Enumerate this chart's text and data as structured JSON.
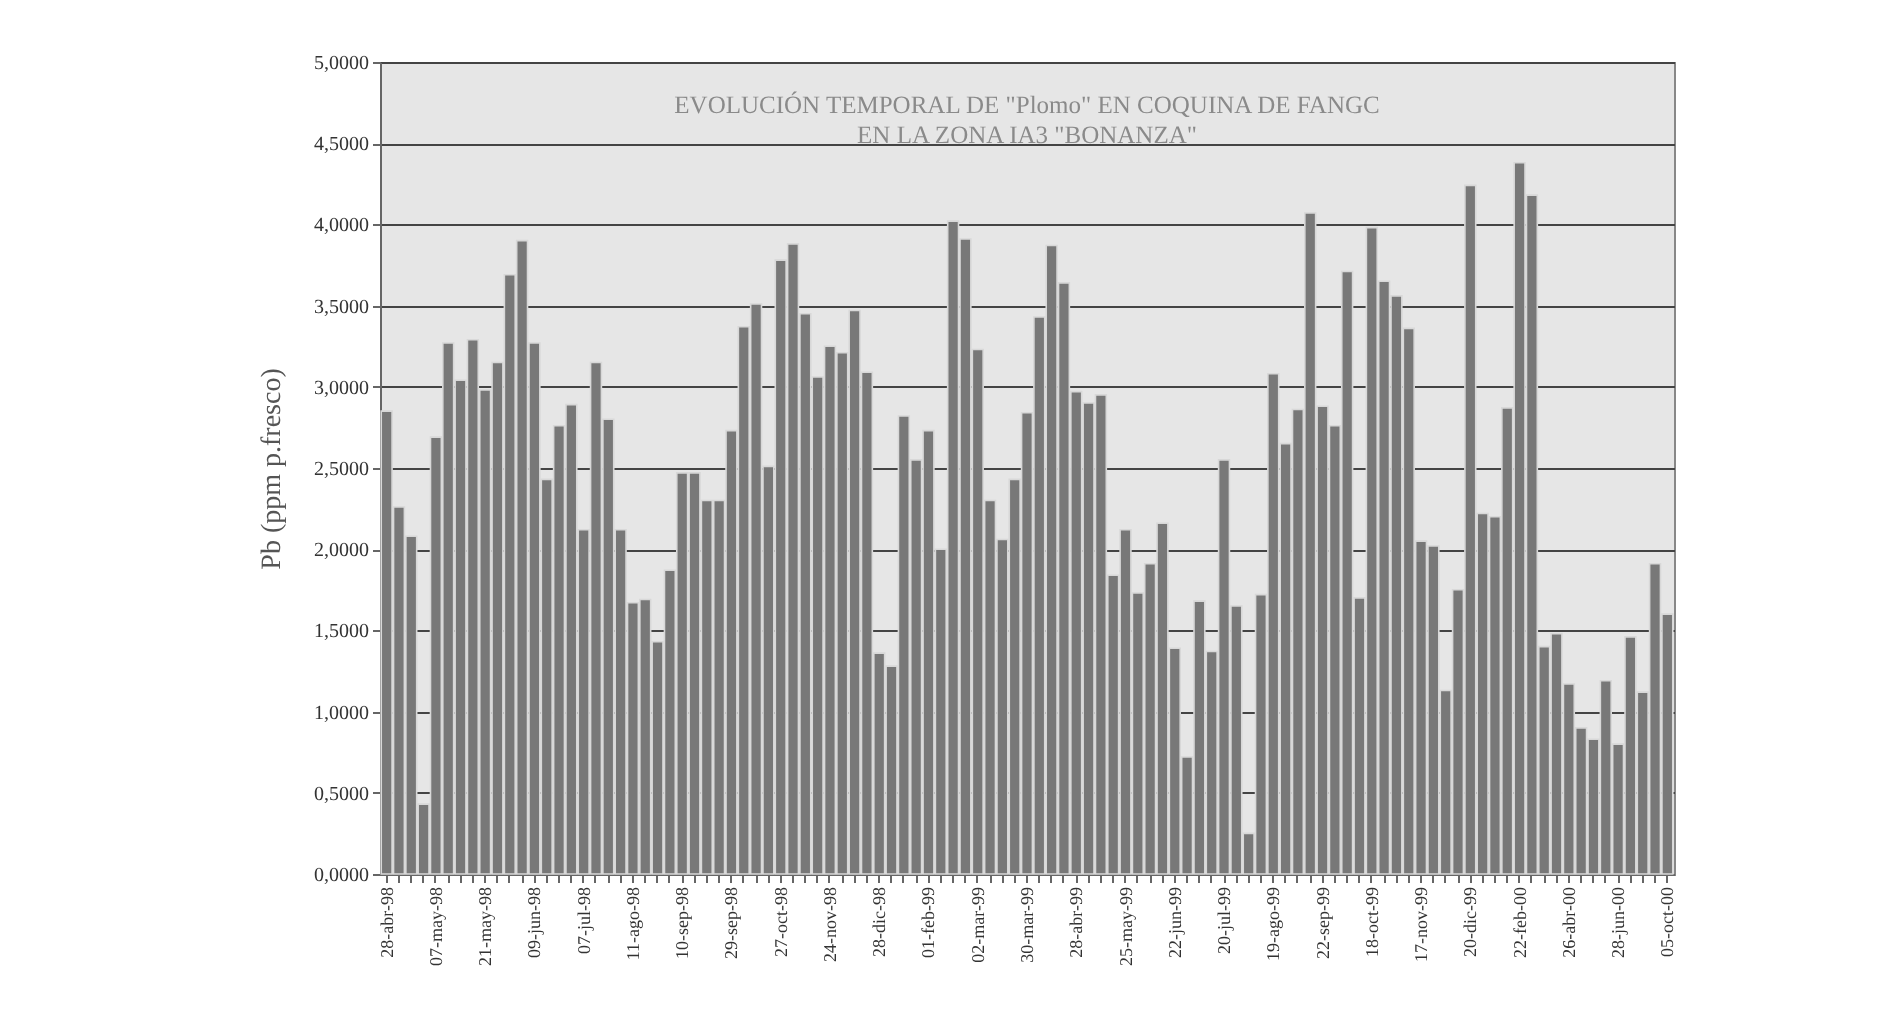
{
  "chart_data": {
    "type": "bar",
    "title": [
      "EVOLUCIÓN TEMPORAL DE \"Plomo\" EN COQUINA DE FANGC",
      "EN LA ZONA IA3 \"BONANZA\""
    ],
    "ylabel": "Pb (ppm p.fresco)",
    "categories": [
      "28-abr-98",
      null,
      null,
      null,
      "07-may-98",
      null,
      null,
      null,
      "21-may-98",
      null,
      null,
      null,
      "09-jun-98",
      null,
      null,
      null,
      "07-jul-98",
      null,
      null,
      null,
      "11-ago-98",
      null,
      null,
      null,
      "10-sep-98",
      null,
      null,
      null,
      "29-sep-98",
      null,
      null,
      null,
      "27-oct-98",
      null,
      null,
      null,
      "24-nov-98",
      null,
      null,
      null,
      "28-dic-98",
      null,
      null,
      null,
      "01-feb-99",
      null,
      null,
      null,
      "02-mar-99",
      null,
      null,
      null,
      "30-mar-99",
      null,
      null,
      null,
      "28-abr-99",
      null,
      null,
      null,
      "25-may-99",
      null,
      null,
      null,
      "22-jun-99",
      null,
      null,
      null,
      "20-jul-99",
      null,
      null,
      null,
      "19-ago-99",
      null,
      null,
      null,
      "22-sep-99",
      null,
      null,
      null,
      "18-oct-99",
      null,
      null,
      null,
      "17-nov-99",
      null,
      null,
      null,
      "20-dic-99",
      null,
      null,
      null,
      "22-feb-00",
      null,
      null,
      null,
      "26-abr-00",
      null,
      null,
      null,
      "28-jun-00",
      null,
      null,
      null,
      "05-oct-00"
    ],
    "values": [
      2.85,
      2.26,
      2.08,
      0.43,
      2.69,
      3.27,
      3.04,
      3.29,
      2.98,
      3.15,
      3.69,
      3.9,
      3.27,
      2.43,
      2.76,
      2.89,
      2.12,
      3.15,
      2.8,
      2.12,
      1.67,
      1.69,
      1.43,
      1.87,
      2.47,
      2.47,
      2.3,
      2.3,
      2.73,
      3.37,
      3.51,
      2.51,
      3.78,
      3.88,
      3.45,
      3.06,
      3.25,
      3.21,
      3.47,
      3.09,
      1.36,
      1.28,
      2.82,
      2.55,
      2.73,
      2.0,
      4.02,
      3.91,
      3.23,
      2.3,
      2.06,
      2.43,
      2.84,
      3.43,
      3.87,
      3.64,
      2.97,
      2.9,
      2.95,
      1.84,
      2.12,
      1.73,
      1.91,
      2.16,
      1.39,
      0.72,
      1.68,
      1.37,
      2.55,
      1.65,
      0.25,
      1.72,
      3.08,
      2.65,
      2.86,
      4.07,
      2.88,
      2.76,
      3.71,
      1.7,
      3.98,
      3.65,
      3.56,
      3.36,
      2.05,
      2.02,
      1.13,
      1.75,
      4.24,
      2.22,
      2.2,
      2.87,
      4.38,
      4.18,
      1.4,
      1.48,
      1.17,
      0.9,
      0.83,
      1.19,
      0.8,
      1.46,
      1.12,
      1.91,
      1.6
    ],
    "color": "#787878",
    "ylim": [
      0,
      5
    ],
    "yticks": [
      {
        "value": 0,
        "label": "0,0000"
      },
      {
        "value": 0.5,
        "label": "0,5000"
      },
      {
        "value": 1,
        "label": "1,0000"
      },
      {
        "value": 1.5,
        "label": "1,5000"
      },
      {
        "value": 2,
        "label": "2,0000"
      },
      {
        "value": 2.5,
        "label": "2,5000"
      },
      {
        "value": 3,
        "label": "3,0000"
      },
      {
        "value": 3.5,
        "label": "3,5000"
      },
      {
        "value": 4,
        "label": "4,0000"
      },
      {
        "value": 4.5,
        "label": "4,5000"
      },
      {
        "value": 5,
        "label": "5,0000"
      }
    ],
    "grid": "y"
  }
}
